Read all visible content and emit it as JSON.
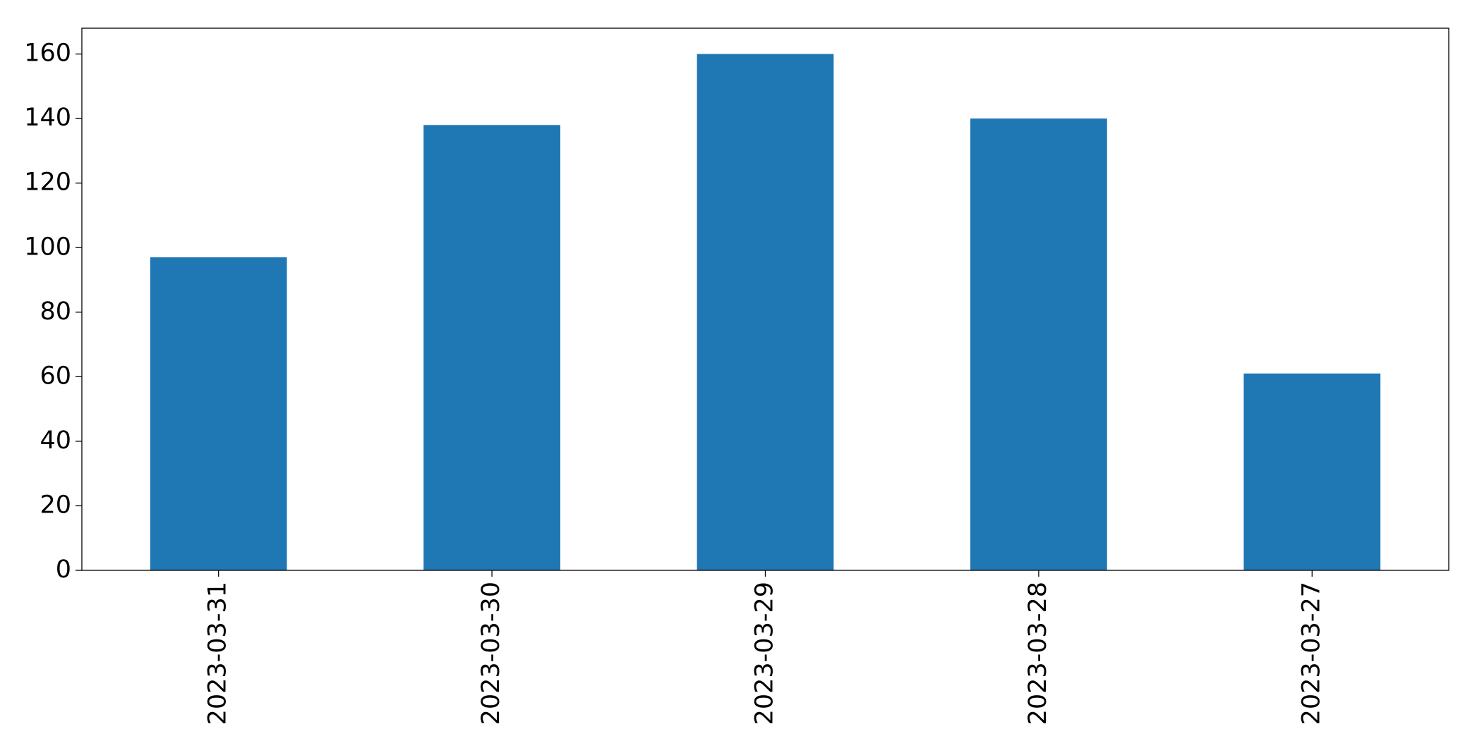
{
  "chart_data": {
    "type": "bar",
    "categories": [
      "2023-03-31",
      "2023-03-30",
      "2023-03-29",
      "2023-03-28",
      "2023-03-27"
    ],
    "values": [
      97,
      138,
      160,
      140,
      61
    ],
    "color": "#1f77b4",
    "ylim": [
      0,
      168
    ],
    "yticks": [
      0,
      20,
      40,
      60,
      80,
      100,
      120,
      140,
      160
    ],
    "grid": false
  }
}
